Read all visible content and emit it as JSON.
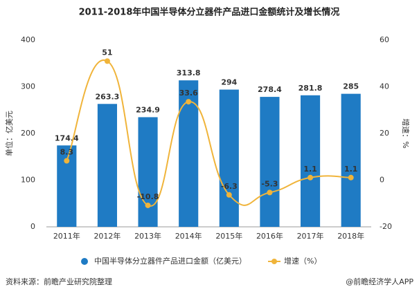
{
  "chart_data": {
    "type": "bar",
    "title": "2011-2018年中国半导体分立器件产品进口金额统计及增长情况",
    "y_label": "单位：亿美元",
    "y2_label": "增速：%",
    "categories": [
      "2011年",
      "2012年",
      "2013年",
      "2014年",
      "2015年",
      "2016年",
      "2017年",
      "2018年"
    ],
    "series": [
      {
        "name": "中国半导体分立器件产品进口金额（亿美元）",
        "type": "bar",
        "color": "#1f7bc4",
        "values": [
          174.4,
          263.3,
          234.9,
          313.8,
          294,
          278.4,
          281.8,
          285
        ]
      },
      {
        "name": "增速（%）",
        "type": "line",
        "axis": "y2",
        "color": "#f0b43a",
        "values": [
          8.3,
          51,
          -10.8,
          33.6,
          -6.3,
          -5.3,
          1.1,
          1.1
        ]
      }
    ],
    "ylim": [
      0,
      400
    ],
    "yticks": [
      0,
      100,
      200,
      300,
      400
    ],
    "y2lim": [
      -20,
      60
    ],
    "y2ticks": [
      -20,
      0,
      20,
      40,
      60
    ],
    "source": "资料来源：前瞻产业研究院整理",
    "credit": "@前瞻经济学人APP"
  }
}
